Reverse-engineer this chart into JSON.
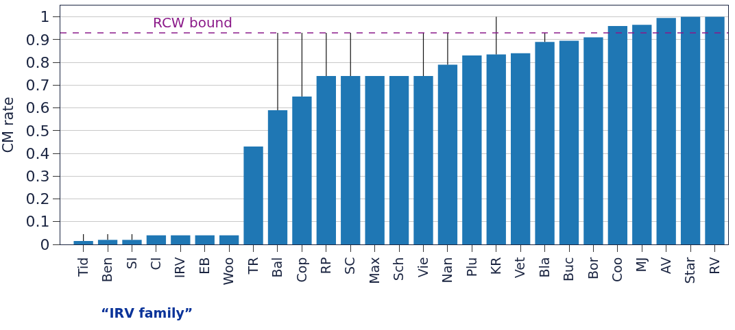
{
  "chart_data": {
    "type": "bar",
    "ylabel": "CM rate",
    "categories": [
      "Tid",
      "Ben",
      "SI",
      "CI",
      "IRV",
      "EB",
      "Woo",
      "TR",
      "Bal",
      "Cop",
      "RP",
      "SC",
      "Max",
      "Sch",
      "Vie",
      "Nan",
      "Plu",
      "KR",
      "Vet",
      "Bla",
      "Buc",
      "Bor",
      "Coo",
      "MJ",
      "AV",
      "Star",
      "RV"
    ],
    "values": [
      0.015,
      0.02,
      0.02,
      0.04,
      0.04,
      0.04,
      0.04,
      0.43,
      0.59,
      0.65,
      0.74,
      0.74,
      0.74,
      0.74,
      0.74,
      0.79,
      0.83,
      0.835,
      0.84,
      0.89,
      0.895,
      0.91,
      0.96,
      0.965,
      0.995,
      1,
      1
    ],
    "errors": [
      [
        0.015,
        0.045
      ],
      [
        0.02,
        0.045
      ],
      [
        0.02,
        0.045
      ],
      null,
      null,
      null,
      null,
      null,
      [
        0.59,
        0.93
      ],
      [
        0.65,
        0.93
      ],
      [
        0.74,
        0.93
      ],
      [
        0.74,
        0.93
      ],
      null,
      null,
      [
        0.74,
        0.93
      ],
      [
        0.79,
        0.93
      ],
      null,
      [
        0.835,
        1
      ],
      null,
      [
        0.89,
        0.93
      ],
      null,
      null,
      null,
      null,
      null,
      null,
      null
    ],
    "color": "#1f77b4",
    "ylim": [
      0,
      1.05
    ],
    "yticks": [
      0,
      0.1,
      0.2,
      0.3,
      0.4,
      0.5,
      0.6,
      0.7,
      0.8,
      0.9,
      1
    ],
    "grid": "y",
    "ref_lines": [
      {
        "axis": "y",
        "value": 0.93,
        "label": "RCW bound",
        "color": "#8b1a89",
        "line_style": "dashed"
      }
    ],
    "annotations": [
      "“IRV family”"
    ]
  }
}
